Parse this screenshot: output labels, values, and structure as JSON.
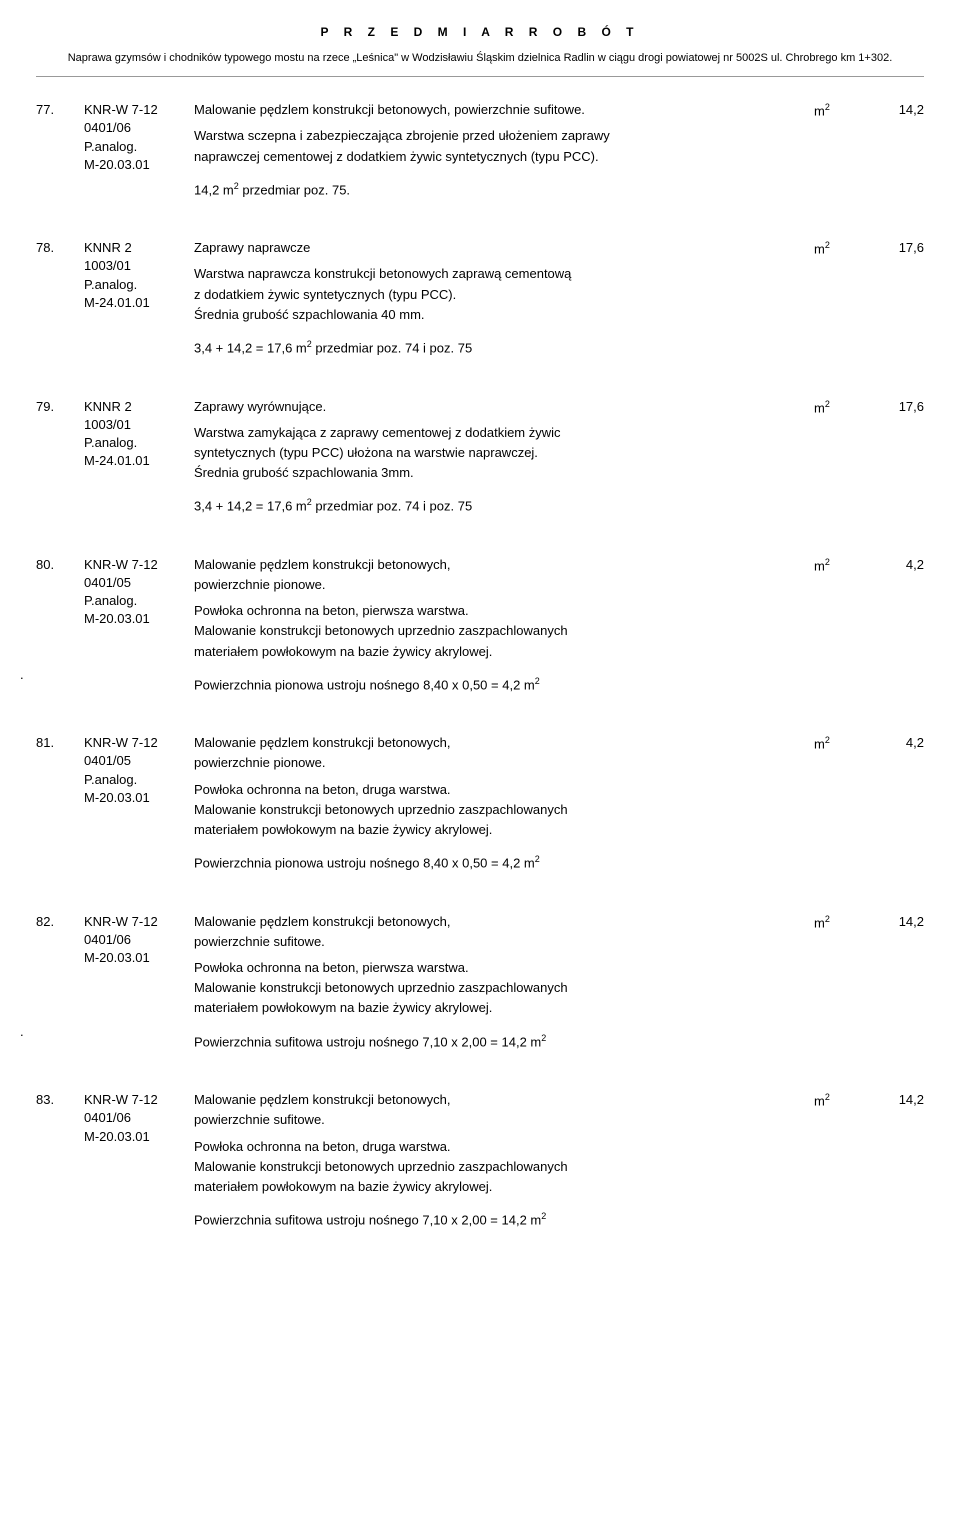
{
  "header": {
    "title": "P R Z E D M I A R   R O B Ó T",
    "subtitle": "Naprawa gzymsów i chodników typowego mostu na rzece „Leśnica\" w Wodzisławiu Śląskim dzielnica Radlin w ciągu drogi powiatowej nr 5002S ul. Chrobrego km 1+302."
  },
  "items": [
    {
      "num": "77.",
      "code": [
        "KNR-W 7-12",
        "0401/06",
        "P.analog.",
        "M-20.03.01"
      ],
      "title": "Malowanie pędzlem konstrukcji betonowych, powierzchnie sufitowe.",
      "lines": [
        "Warstwa sczepna i zabezpieczająca zbrojenie przed ułożeniem zaprawy",
        "naprawczej cementowej z dodatkiem żywic syntetycznych (typu PCC)."
      ],
      "calc": "14,2 m2   przedmiar poz. 75.",
      "unit": "m2",
      "qty": "14,2",
      "dot": false
    },
    {
      "num": "78.",
      "code": [
        "KNNR 2",
        "1003/01",
        "P.analog.",
        "M-24.01.01"
      ],
      "title": "Zaprawy naprawcze",
      "lines": [
        "Warstwa naprawcza konstrukcji betonowych zaprawą cementową",
        "z dodatkiem żywic syntetycznych (typu PCC).",
        "Średnia grubość szpachlowania 40 mm."
      ],
      "calc": "3,4 + 14,2 = 17,6 m2  przedmiar poz. 74 i poz. 75",
      "unit": "m2",
      "qty": "17,6",
      "dot": false
    },
    {
      "num": "79.",
      "code": [
        "KNNR 2",
        "1003/01",
        "P.analog.",
        "M-24.01.01"
      ],
      "title": "Zaprawy wyrównujące.",
      "lines": [
        "Warstwa zamykająca z zaprawy cementowej z dodatkiem żywic",
        "syntetycznych (typu PCC) ułożona na warstwie naprawczej.",
        "Średnia grubość szpachlowania 3mm."
      ],
      "calc": "3,4 + 14,2 = 17,6 m2  przedmiar poz. 74 i poz. 75",
      "unit": "m2",
      "qty": "17,6",
      "dot": false
    },
    {
      "num": "80.",
      "code": [
        "KNR-W 7-12",
        "0401/05",
        "P.analog.",
        "M-20.03.01"
      ],
      "title": "Malowanie pędzlem konstrukcji betonowych,",
      "title2": "powierzchnie pionowe.",
      "lines": [
        "Powłoka ochronna na beton, pierwsza warstwa.",
        "Malowanie konstrukcji betonowych uprzednio zaszpachlowanych",
        "materiałem powłokowym na bazie żywicy akrylowej."
      ],
      "calc": "Powierzchnia pionowa ustroju nośnego  8,40 x 0,50 = 4,2 m2",
      "unit": "m2",
      "qty": "4,2",
      "dot": true
    },
    {
      "num": "81.",
      "code": [
        "KNR-W 7-12",
        "0401/05",
        "P.analog.",
        "M-20.03.01"
      ],
      "title": "Malowanie pędzlem konstrukcji betonowych,",
      "title2": "powierzchnie pionowe.",
      "lines": [
        "Powłoka ochronna na beton, druga warstwa.",
        "Malowanie konstrukcji betonowych uprzednio zaszpachlowanych",
        "materiałem powłokowym na bazie żywicy akrylowej."
      ],
      "calc": "Powierzchnia pionowa ustroju nośnego  8,40 x 0,50 = 4,2 m2",
      "unit": "m2",
      "qty": "4,2",
      "dot": false
    },
    {
      "num": "82.",
      "code": [
        "KNR-W 7-12",
        "0401/06",
        "M-20.03.01"
      ],
      "title": "Malowanie pędzlem konstrukcji betonowych,",
      "title2": "powierzchnie sufitowe.",
      "lines": [
        "Powłoka ochronna na beton, pierwsza warstwa.",
        "Malowanie konstrukcji betonowych uprzednio zaszpachlowanych",
        "materiałem powłokowym na bazie żywicy akrylowej."
      ],
      "calc": "Powierzchnia sufitowa ustroju nośnego  7,10 x 2,00 = 14,2 m2",
      "unit": "m2",
      "qty": "14,2",
      "dot": true
    },
    {
      "num": "83.",
      "code": [
        "KNR-W 7-12",
        "0401/06",
        "M-20.03.01"
      ],
      "title": "Malowanie pędzlem konstrukcji betonowych,",
      "title2": "powierzchnie sufitowe.",
      "lines": [
        "Powłoka ochronna na beton, druga warstwa.",
        "Malowanie konstrukcji betonowych uprzednio zaszpachlowanych",
        "materiałem powłokowym na bazie żywicy akrylowej."
      ],
      "calc": "Powierzchnia sufitowa ustroju nośnego  7,10 x 2,00 = 14,2 m2",
      "unit": "m2",
      "qty": "14,2",
      "dot": false
    }
  ]
}
